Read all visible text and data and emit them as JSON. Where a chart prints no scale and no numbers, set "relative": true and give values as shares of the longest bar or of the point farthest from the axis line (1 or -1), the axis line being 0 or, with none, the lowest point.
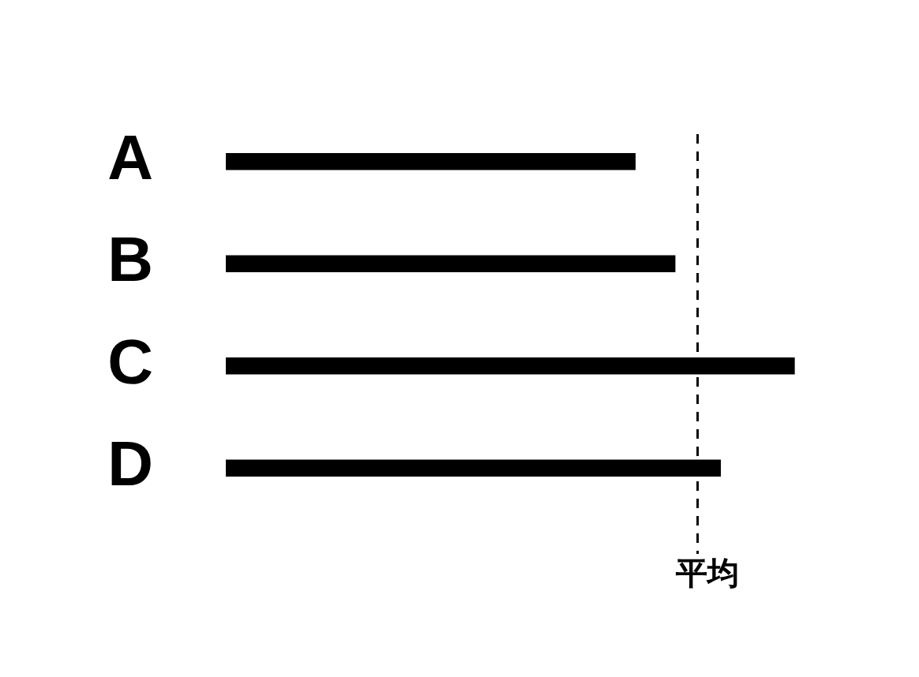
{
  "chart_data": {
    "type": "bar",
    "orientation": "horizontal",
    "relative": true,
    "categories": [
      "A",
      "B",
      "C",
      "D"
    ],
    "values": [
      0.72,
      0.79,
      1,
      0.87
    ],
    "color": "#000000",
    "legend": false,
    "ref_lines": [
      {
        "axis": "x",
        "value": 0.83,
        "label": "平均",
        "color": "#000000",
        "line_style": "dashed"
      }
    ]
  }
}
